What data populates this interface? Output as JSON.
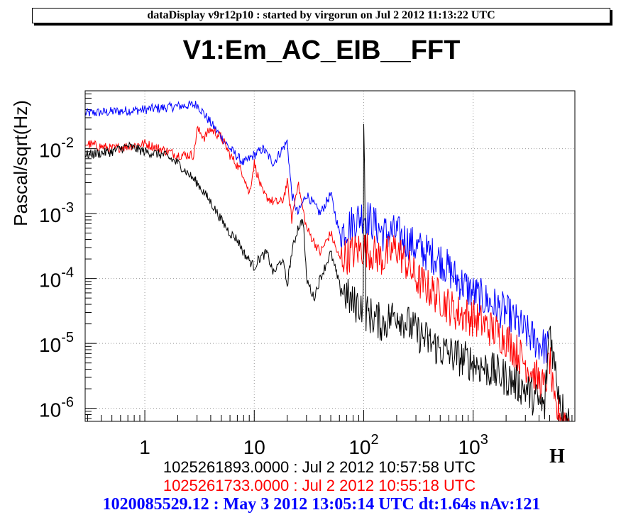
{
  "header": {
    "banner": "dataDisplay v9r12p10 : started by virgorun on Jul  2 2012 11:13:22 UTC"
  },
  "chart_data": {
    "type": "line",
    "title": "V1:Em_AC_EIB__FFT",
    "xlabel": "H",
    "ylabel": "Pascal/sqrt(Hz)",
    "xscale": "log",
    "yscale": "log",
    "xlim": [
      0.285,
      8500
    ],
    "ylim": [
      6.3e-07,
      0.078
    ],
    "grid": true,
    "xticks": [
      {
        "base": "10",
        "exp": "",
        "label": "1",
        "v": 1
      },
      {
        "base": "10",
        "exp": "",
        "v": 10
      },
      {
        "base": "10",
        "exp": "2",
        "v": 100
      },
      {
        "base": "10",
        "exp": "3",
        "v": 1000
      }
    ],
    "yticks": [
      {
        "base": "10",
        "exp": "-2",
        "v": 0.01
      },
      {
        "base": "10",
        "exp": "-3",
        "v": 0.001
      },
      {
        "base": "10",
        "exp": "-4",
        "v": 0.0001
      },
      {
        "base": "10",
        "exp": "-5",
        "v": 1e-05
      },
      {
        "base": "10",
        "exp": "-6",
        "v": 1e-06
      }
    ],
    "series": [
      {
        "name": "1020085529.12 : May  3 2012 13:05:14 UTC dt:1.64s nAv:121",
        "color": "#0000ff",
        "points": [
          [
            0.285,
            0.035
          ],
          [
            1,
            0.04
          ],
          [
            2,
            0.045
          ],
          [
            3,
            0.048
          ],
          [
            4,
            0.025
          ],
          [
            6,
            0.01
          ],
          [
            8,
            0.006
          ],
          [
            10,
            0.008
          ],
          [
            12,
            0.01
          ],
          [
            15,
            0.006
          ],
          [
            20,
            0.013
          ],
          [
            22,
            0.002
          ],
          [
            25,
            0.001
          ],
          [
            30,
            0.002
          ],
          [
            40,
            0.001
          ],
          [
            50,
            0.002
          ],
          [
            60,
            0.0005
          ],
          [
            100,
            0.001
          ],
          [
            150,
            0.0005
          ],
          [
            200,
            0.0005
          ],
          [
            300,
            0.0003
          ],
          [
            500,
            0.0002
          ],
          [
            700,
            0.0001
          ],
          [
            1000,
            6e-05
          ],
          [
            2000,
            3e-05
          ],
          [
            3000,
            1.5e-05
          ],
          [
            4000,
            1e-05
          ],
          [
            5000,
            8e-06
          ]
        ]
      },
      {
        "name": "1025261733.0000 : Jul  2 2012 10:55:18 UTC",
        "color": "#ff0000",
        "points": [
          [
            0.285,
            0.012
          ],
          [
            0.5,
            0.01
          ],
          [
            1,
            0.012
          ],
          [
            2,
            0.008
          ],
          [
            2.8,
            0.008
          ],
          [
            3,
            0.02
          ],
          [
            3.5,
            0.015
          ],
          [
            4,
            0.02
          ],
          [
            5,
            0.015
          ],
          [
            6,
            0.008
          ],
          [
            8,
            0.004
          ],
          [
            9,
            0.002
          ],
          [
            10,
            0.006
          ],
          [
            12,
            0.002
          ],
          [
            15,
            0.0015
          ],
          [
            18,
            0.0015
          ],
          [
            20,
            0.003
          ],
          [
            22,
            0.0008
          ],
          [
            25,
            0.003
          ],
          [
            30,
            0.0006
          ],
          [
            40,
            0.00025
          ],
          [
            50,
            0.0005
          ],
          [
            60,
            0.0002
          ],
          [
            100,
            0.0003
          ],
          [
            150,
            0.0002
          ],
          [
            200,
            0.0003
          ],
          [
            300,
            0.0001
          ],
          [
            500,
            5e-05
          ],
          [
            700,
            3e-05
          ],
          [
            1000,
            2.5e-05
          ],
          [
            2000,
            1.2e-05
          ],
          [
            3000,
            5e-06
          ],
          [
            4500,
            2e-06
          ],
          [
            5000,
            6e-06
          ],
          [
            5500,
            1e-06
          ],
          [
            8000,
            5e-07
          ]
        ]
      },
      {
        "name": "1025261893.0000 : Jul  2 2012 10:57:58 UTC",
        "color": "#000000",
        "points": [
          [
            0.285,
            0.008
          ],
          [
            0.5,
            0.009
          ],
          [
            0.7,
            0.011
          ],
          [
            1,
            0.009
          ],
          [
            1.5,
            0.008
          ],
          [
            2,
            0.006
          ],
          [
            3,
            0.003
          ],
          [
            4,
            0.0015
          ],
          [
            5,
            0.0008
          ],
          [
            6,
            0.0005
          ],
          [
            7,
            0.0004
          ],
          [
            8,
            0.00025
          ],
          [
            10,
            0.00015
          ],
          [
            11,
            0.0002
          ],
          [
            13,
            0.00025
          ],
          [
            15,
            0.00012
          ],
          [
            18,
            0.0002
          ],
          [
            20,
            8e-05
          ],
          [
            22,
            0.00025
          ],
          [
            25,
            0.0006
          ],
          [
            28,
            0.0008
          ],
          [
            30,
            0.0001
          ],
          [
            35,
            5e-05
          ],
          [
            40,
            0.0001
          ],
          [
            50,
            0.00025
          ],
          [
            60,
            8e-05
          ],
          [
            80,
            4e-05
          ],
          [
            99,
            4e-05
          ],
          [
            100,
            0.04
          ],
          [
            105,
            3e-05
          ],
          [
            150,
            2e-05
          ],
          [
            200,
            3e-05
          ],
          [
            300,
            1.5e-05
          ],
          [
            500,
            8e-06
          ],
          [
            1000,
            5e-06
          ],
          [
            2000,
            3e-06
          ],
          [
            3000,
            2e-06
          ],
          [
            4500,
            1e-06
          ],
          [
            5000,
            2e-05
          ],
          [
            5500,
            5e-06
          ],
          [
            6500,
            1e-06
          ],
          [
            8000,
            5e-07
          ]
        ]
      }
    ]
  }
}
